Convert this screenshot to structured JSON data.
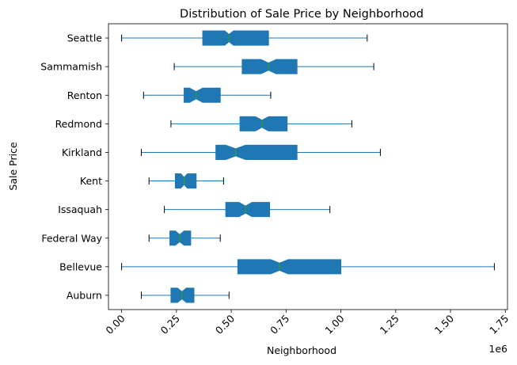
{
  "chart_data": {
    "type": "boxplot",
    "orientation": "horizontal",
    "notched": true,
    "title": "Distribution of Sale Price by Neighborhood",
    "xlabel": "Neighborhood",
    "ylabel": "Sale Price",
    "x_offset_label": "1e6",
    "xlim": [
      -0.06,
      1.76
    ],
    "x_ticks": [
      0.0,
      0.25,
      0.5,
      0.75,
      1.0,
      1.25,
      1.5,
      1.75
    ],
    "x_tick_labels": [
      "0.00",
      "0.25",
      "0.50",
      "0.75",
      "1.00",
      "1.25",
      "1.50",
      "1.75"
    ],
    "x_tick_rotation": 45,
    "grid": false,
    "colors": {
      "box": "#1f77b4",
      "median": "#2ca02c",
      "whisker": "#1f77b4",
      "cap": "#000000"
    },
    "categories": [
      "Auburn",
      "Bellevue",
      "Federal Way",
      "Issaquah",
      "Kent",
      "Kirkland",
      "Redmond",
      "Renton",
      "Sammamish",
      "Seattle"
    ],
    "boxes": [
      {
        "label": "Auburn",
        "whislo": 0.09,
        "q1": 0.225,
        "med": 0.275,
        "q3": 0.33,
        "whishi": 0.49,
        "notch": [
          0.255,
          0.295
        ]
      },
      {
        "label": "Bellevue",
        "whislo": 0.0,
        "q1": 0.53,
        "med": 0.72,
        "q3": 1.0,
        "whishi": 1.7,
        "notch": [
          0.68,
          0.76
        ]
      },
      {
        "label": "Federal Way",
        "whislo": 0.125,
        "q1": 0.22,
        "med": 0.265,
        "q3": 0.315,
        "whishi": 0.45,
        "notch": [
          0.245,
          0.285
        ]
      },
      {
        "label": "Issaquah",
        "whislo": 0.195,
        "q1": 0.475,
        "med": 0.565,
        "q3": 0.675,
        "whishi": 0.95,
        "notch": [
          0.535,
          0.595
        ]
      },
      {
        "label": "Kent",
        "whislo": 0.125,
        "q1": 0.245,
        "med": 0.285,
        "q3": 0.34,
        "whishi": 0.465,
        "notch": [
          0.27,
          0.3
        ]
      },
      {
        "label": "Kirkland",
        "whislo": 0.09,
        "q1": 0.43,
        "med": 0.52,
        "q3": 0.8,
        "whishi": 1.18,
        "notch": [
          0.475,
          0.565
        ]
      },
      {
        "label": "Redmond",
        "whislo": 0.225,
        "q1": 0.54,
        "med": 0.64,
        "q3": 0.755,
        "whishi": 1.05,
        "notch": [
          0.61,
          0.67
        ]
      },
      {
        "label": "Renton",
        "whislo": 0.1,
        "q1": 0.285,
        "med": 0.34,
        "q3": 0.45,
        "whishi": 0.68,
        "notch": [
          0.31,
          0.37
        ]
      },
      {
        "label": "Sammamish",
        "whislo": 0.24,
        "q1": 0.55,
        "med": 0.67,
        "q3": 0.8,
        "whishi": 1.15,
        "notch": [
          0.635,
          0.705
        ]
      },
      {
        "label": "Seattle",
        "whislo": 0.0,
        "q1": 0.37,
        "med": 0.49,
        "q3": 0.67,
        "whishi": 1.12,
        "notch": [
          0.47,
          0.51
        ]
      }
    ]
  }
}
